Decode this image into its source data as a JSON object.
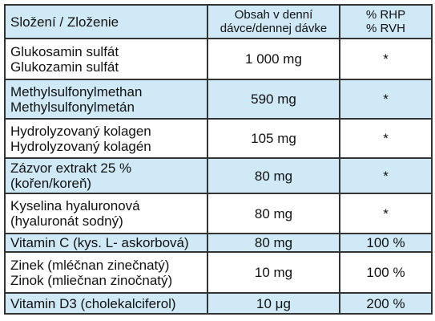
{
  "table": {
    "header": [
      [
        "Složení / Zloženie"
      ],
      [
        "Obsah v denní",
        "dávce/dennej dávke"
      ],
      [
        "% RHP",
        "% RVH"
      ]
    ],
    "rows": [
      {
        "name": [
          "Glukosamin sulfát",
          "Glukozamin sulfát"
        ],
        "amount": "1 000 mg",
        "rhp": "*"
      },
      {
        "name": [
          "Methylsulfonylmethan",
          "Methylsulfonylmetán"
        ],
        "amount": "590 mg",
        "rhp": "*"
      },
      {
        "name": [
          "Hydrolyzovaný kolagen",
          "Hydrolyzovaný kolagén"
        ],
        "amount": "105 mg",
        "rhp": "*"
      },
      {
        "name": [
          "Zázvor extrakt 25 %",
          "(kořen/koreň)"
        ],
        "amount": "80 mg",
        "rhp": "*"
      },
      {
        "name": [
          "Kyselina hyaluronová",
          "(hyaluronát sodný)"
        ],
        "amount": "80 mg",
        "rhp": "*"
      },
      {
        "name": [
          "Vitamin C (kys. L- askorbová)"
        ],
        "amount": "80 mg",
        "rhp": "100 %"
      },
      {
        "name": [
          "Zinek (mléčnan zinečnatý)",
          "Zinok (mliečnan zinočnatý)"
        ],
        "amount": "10 mg",
        "rhp": "100 %"
      },
      {
        "name": [
          "Vitamin D3 (cholekalciferol)"
        ],
        "amount": "10 μg",
        "rhp": "200 %"
      }
    ]
  }
}
